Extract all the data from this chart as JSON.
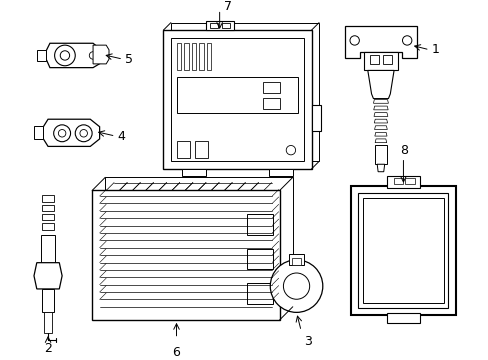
{
  "background_color": "#ffffff",
  "line_color": "#000000",
  "label_fontsize": 9,
  "fig_width": 4.89,
  "fig_height": 3.6
}
